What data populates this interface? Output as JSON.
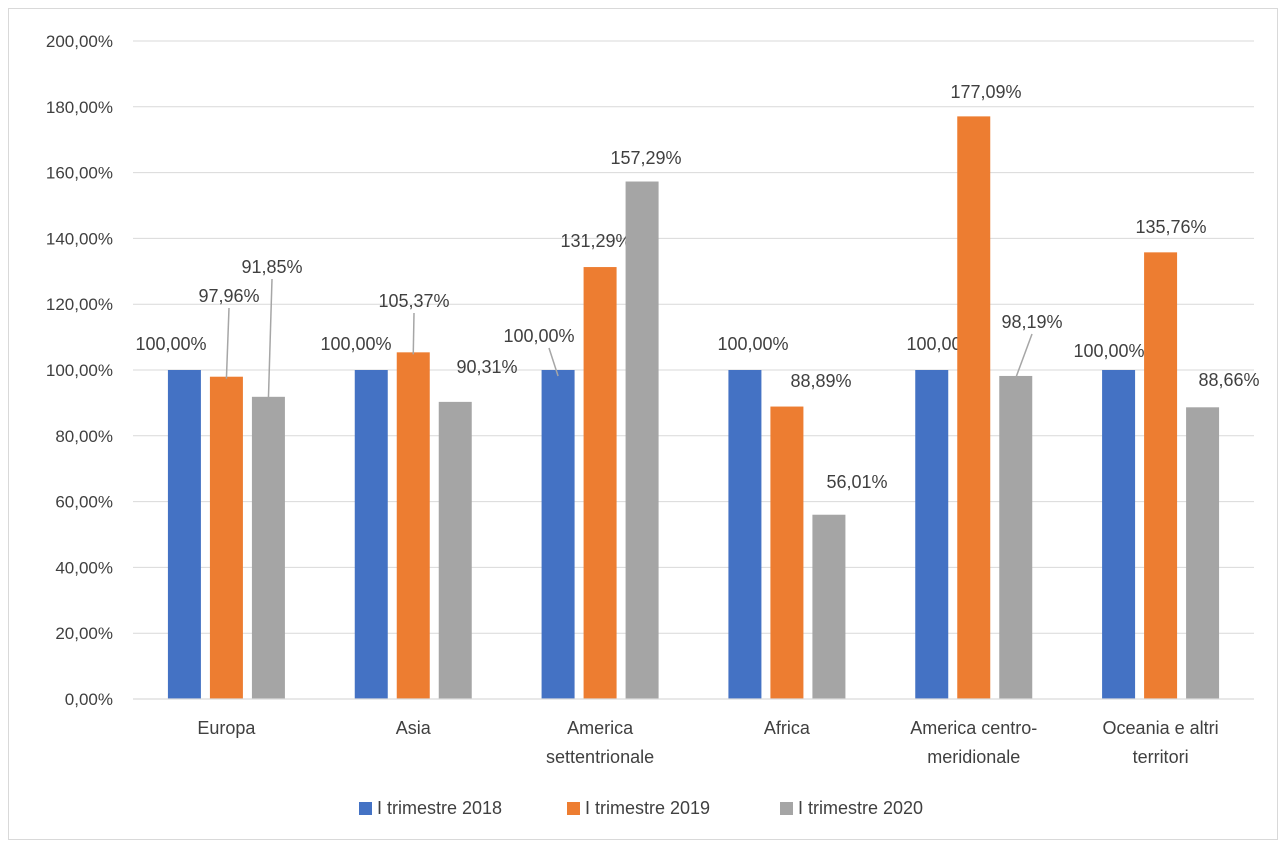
{
  "chart_data": {
    "type": "bar",
    "title": "",
    "xlabel": "",
    "ylabel": "",
    "ylim": [
      0,
      200
    ],
    "y_ticks": [
      0,
      20,
      40,
      60,
      80,
      100,
      120,
      140,
      160,
      180,
      200
    ],
    "y_tick_labels": [
      "0,00%",
      "20,00%",
      "40,00%",
      "60,00%",
      "80,00%",
      "100,00%",
      "120,00%",
      "140,00%",
      "160,00%",
      "180,00%",
      "200,00%"
    ],
    "grid": true,
    "legend_position": "bottom",
    "categories": [
      [
        "Europa"
      ],
      [
        "Asia"
      ],
      [
        "America",
        "settentrionale"
      ],
      [
        "Africa"
      ],
      [
        "America centro-",
        "meridionale"
      ],
      [
        "Oceania e altri",
        "territori"
      ]
    ],
    "series": [
      {
        "name": "I trimestre 2018",
        "color": "#4472c4",
        "values": [
          100.0,
          100.0,
          100.0,
          100.0,
          100.0,
          100.0
        ],
        "labels": [
          "100,00%",
          "100,00%",
          "100,00%",
          "100,00%",
          "100,00%",
          "100,00%"
        ]
      },
      {
        "name": "I trimestre 2019",
        "color": "#ed7d31",
        "values": [
          97.96,
          105.37,
          131.29,
          88.89,
          177.09,
          135.76
        ],
        "labels": [
          "97,96%",
          "105,37%",
          "131,29%",
          "88,89%",
          "177,09%",
          "135,76%"
        ]
      },
      {
        "name": "I trimestre 2020",
        "color": "#a5a5a5",
        "values": [
          91.85,
          90.31,
          157.29,
          56.01,
          98.19,
          88.66
        ],
        "labels": [
          "91,85%",
          "90,31%",
          "157,29%",
          "56,01%",
          "98,19%",
          "88,66%"
        ]
      }
    ]
  }
}
